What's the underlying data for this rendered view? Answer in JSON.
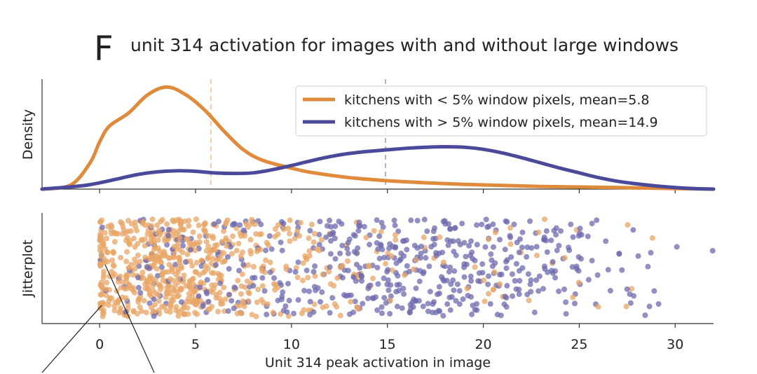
{
  "figure": {
    "panel_letter": "F",
    "title": "unit 314 activation for images with and without large windows"
  },
  "chart_data": [
    {
      "type": "area",
      "panel": "density",
      "ylabel": "Density",
      "xlim": [
        -3,
        32
      ],
      "legend_position": "top-right",
      "series": [
        {
          "name": "kitchens with < 5% window pixels, mean=5.8",
          "color": "#e08a3c",
          "mean": 5.8,
          "x": [
            -3,
            -1.5,
            -0.5,
            0,
            0.5,
            1.5,
            2.5,
            3.5,
            4.5,
            5.5,
            6.5,
            7.5,
            8.5,
            10,
            11,
            13,
            15,
            17,
            19,
            21,
            23,
            25,
            27,
            30,
            32
          ],
          "density": [
            0.0,
            0.008,
            0.05,
            0.09,
            0.12,
            0.145,
            0.18,
            0.195,
            0.18,
            0.15,
            0.11,
            0.075,
            0.055,
            0.04,
            0.032,
            0.022,
            0.016,
            0.012,
            0.009,
            0.007,
            0.005,
            0.004,
            0.003,
            0.001,
            0.0
          ]
        },
        {
          "name": "kitchens with > 5% window pixels, mean=14.9",
          "color": "#4b4a9a",
          "mean": 14.9,
          "x": [
            -3,
            -1,
            0,
            1,
            2,
            3,
            4,
            5,
            6,
            7,
            8,
            9,
            10,
            11,
            12,
            13,
            14,
            15,
            16,
            17,
            18,
            19,
            20,
            21,
            22,
            23,
            24,
            25,
            26,
            27,
            28,
            29,
            30,
            31,
            32
          ],
          "density": [
            0.0,
            0.006,
            0.012,
            0.02,
            0.028,
            0.033,
            0.035,
            0.034,
            0.031,
            0.03,
            0.031,
            0.037,
            0.045,
            0.054,
            0.062,
            0.068,
            0.072,
            0.075,
            0.078,
            0.08,
            0.081,
            0.08,
            0.076,
            0.069,
            0.06,
            0.05,
            0.04,
            0.031,
            0.022,
            0.015,
            0.01,
            0.006,
            0.003,
            0.001,
            0.0
          ]
        }
      ]
    },
    {
      "type": "scatter",
      "panel": "jitterplot",
      "ylabel": "Jitterplot",
      "xlabel": "Unit 314 peak activation in image",
      "xlim": [
        -3,
        32
      ],
      "xticks": [
        0,
        5,
        10,
        15,
        20,
        25,
        30
      ],
      "grid": false,
      "series": [
        {
          "name": "kitchens with < 5% window pixels, mean=5.8",
          "color": "#e8a565",
          "count": 700,
          "mean": 5.8
        },
        {
          "name": "kitchens with > 5% window pixels, mean=14.9",
          "color": "#6d6aad",
          "count": 550,
          "mean": 14.9
        }
      ]
    }
  ]
}
